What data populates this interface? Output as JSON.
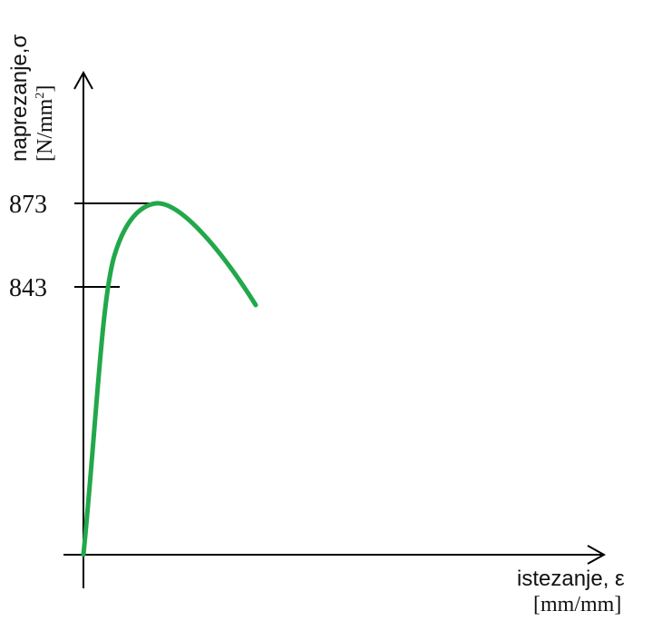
{
  "chart_data": {
    "type": "line",
    "title": "",
    "ylabel": {
      "text": "naprezanje,σ",
      "unit_prefix": "[N/mm",
      "unit_exp": "2",
      "unit_suffix": "]"
    },
    "xlabel": {
      "text": "istezanje, ε",
      "unit": "[mm/mm]"
    },
    "y_ticks": [
      {
        "label": "873",
        "value": 873
      },
      {
        "label": "843",
        "value": 843
      }
    ],
    "series": [
      {
        "color": "#22a84a",
        "points": [
          {
            "x": 0.0,
            "y": 0
          },
          {
            "x": 0.03,
            "y": 580
          },
          {
            "x": 0.06,
            "y": 740
          },
          {
            "x": 0.1,
            "y": 843
          },
          {
            "x": 0.15,
            "y": 862
          },
          {
            "x": 0.22,
            "y": 873
          },
          {
            "x": 0.3,
            "y": 866
          },
          {
            "x": 0.42,
            "y": 850
          },
          {
            "x": 0.55,
            "y": 834
          }
        ]
      }
    ],
    "grid": false,
    "legend": "none"
  },
  "colors": {
    "axis": "#000000",
    "curve": "#22a84a",
    "text": "#111111"
  }
}
